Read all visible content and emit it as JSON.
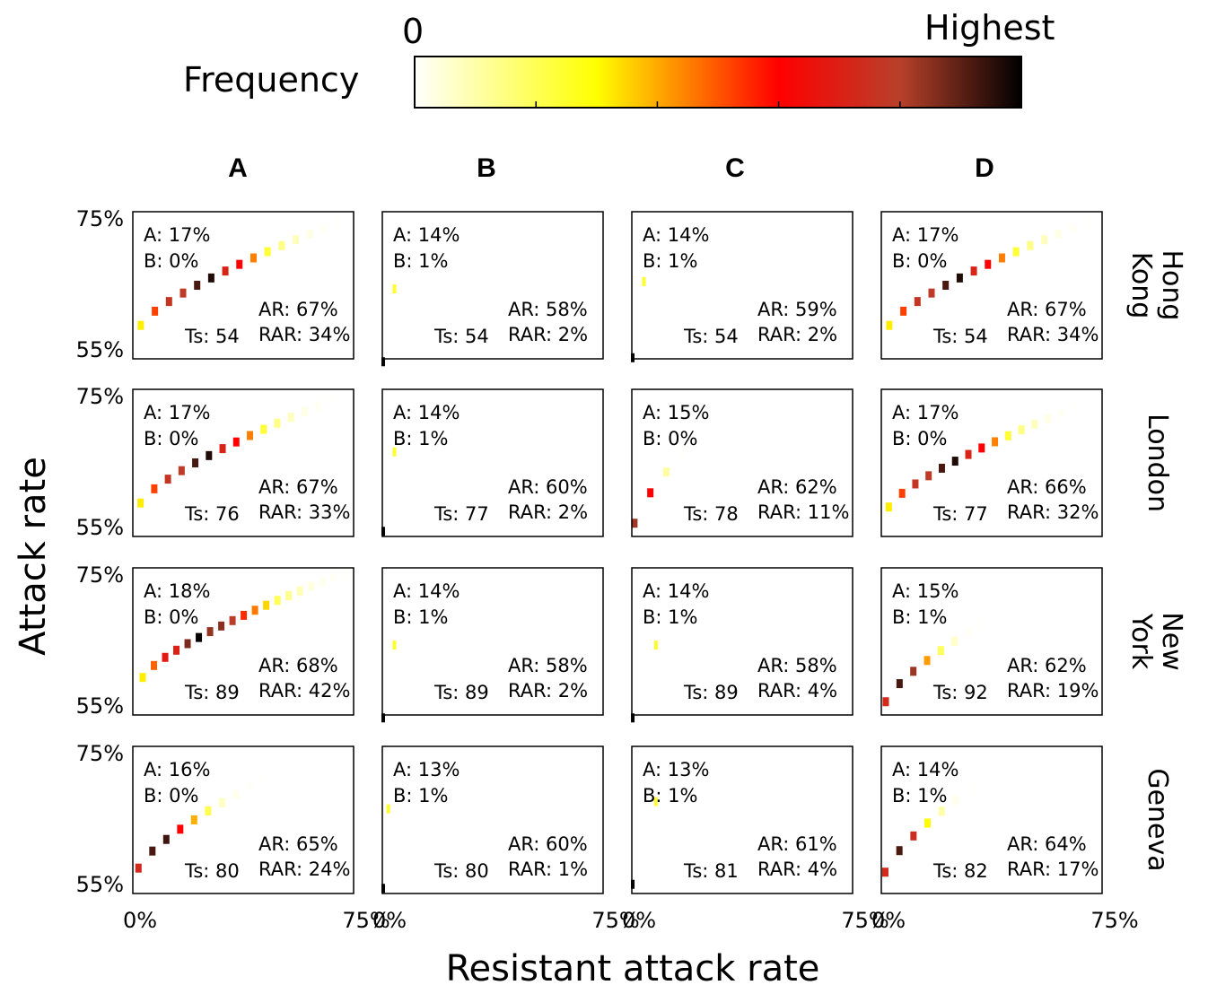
{
  "legend": {
    "title": "Frequency",
    "min_label": "0",
    "max_label": "Highest",
    "colormap": [
      "#ffffff",
      "#ffff00",
      "#ff8c00",
      "#ff0000",
      "#000000"
    ]
  },
  "columns": [
    "A",
    "B",
    "C",
    "D"
  ],
  "rows": [
    {
      "label": [
        "Hong",
        "Kong"
      ]
    },
    {
      "label": [
        "London"
      ]
    },
    {
      "label": [
        "New",
        "York"
      ]
    },
    {
      "label": [
        "Geneva"
      ]
    }
  ],
  "axes": {
    "ylabel": "Attack rate",
    "xlabel": "Resistant attack rate",
    "ytick_top": "75%",
    "ytick_bottom": "55%",
    "xtick_left": "0%",
    "xtick_right": "75%"
  },
  "chart_data": {
    "type": "heatmap",
    "x_range": [
      0,
      75
    ],
    "y_range": [
      55,
      75
    ],
    "panels": [
      {
        "row": 0,
        "col": 0,
        "A": "A: 17%",
        "B": "B: 0%",
        "AR": "AR: 67%",
        "RAR": "RAR: 34%",
        "Ts": "Ts: 54"
      },
      {
        "row": 0,
        "col": 1,
        "A": "A: 14%",
        "B": "B: 1%",
        "AR": "AR: 58%",
        "RAR": "RAR: 2%",
        "Ts": "Ts: 54"
      },
      {
        "row": 0,
        "col": 2,
        "A": "A: 14%",
        "B": "B: 1%",
        "AR": "AR: 59%",
        "RAR": "RAR: 2%",
        "Ts": "Ts: 54"
      },
      {
        "row": 0,
        "col": 3,
        "A": "A: 17%",
        "B": "B: 0%",
        "AR": "AR: 67%",
        "RAR": "RAR: 34%",
        "Ts": "Ts: 54"
      },
      {
        "row": 1,
        "col": 0,
        "A": "A: 17%",
        "B": "B: 0%",
        "AR": "AR: 67%",
        "RAR": "RAR: 33%",
        "Ts": "Ts: 76"
      },
      {
        "row": 1,
        "col": 1,
        "A": "A: 14%",
        "B": "B: 1%",
        "AR": "AR: 60%",
        "RAR": "RAR: 2%",
        "Ts": "Ts: 77"
      },
      {
        "row": 1,
        "col": 2,
        "A": "A: 15%",
        "B": "B: 0%",
        "AR": "AR: 62%",
        "RAR": "RAR: 11%",
        "Ts": "Ts: 78"
      },
      {
        "row": 1,
        "col": 3,
        "A": "A: 17%",
        "B": "B: 0%",
        "AR": "AR: 66%",
        "RAR": "RAR: 32%",
        "Ts": "Ts: 77"
      },
      {
        "row": 2,
        "col": 0,
        "A": "A: 18%",
        "B": "B: 0%",
        "AR": "AR: 68%",
        "RAR": "RAR: 42%",
        "Ts": "Ts: 89"
      },
      {
        "row": 2,
        "col": 1,
        "A": "A: 14%",
        "B": "B: 1%",
        "AR": "AR: 58%",
        "RAR": "RAR: 2%",
        "Ts": "Ts: 89"
      },
      {
        "row": 2,
        "col": 2,
        "A": "A: 14%",
        "B": "B: 1%",
        "AR": "AR: 58%",
        "RAR": "RAR: 4%",
        "Ts": "Ts: 89"
      },
      {
        "row": 2,
        "col": 3,
        "A": "A: 15%",
        "B": "B: 1%",
        "AR": "AR: 62%",
        "RAR": "RAR: 19%",
        "Ts": "Ts: 92"
      },
      {
        "row": 3,
        "col": 0,
        "A": "A: 16%",
        "B": "B: 0%",
        "AR": "AR: 65%",
        "RAR": "RAR: 24%",
        "Ts": "Ts: 80"
      },
      {
        "row": 3,
        "col": 1,
        "A": "A: 13%",
        "B": "B: 1%",
        "AR": "AR: 60%",
        "RAR": "RAR: 1%",
        "Ts": "Ts: 80"
      },
      {
        "row": 3,
        "col": 2,
        "A": "A: 13%",
        "B": "B: 1%",
        "AR": "AR: 61%",
        "RAR": "RAR: 4%",
        "Ts": "Ts: 81"
      },
      {
        "row": 3,
        "col": 3,
        "A": "A: 14%",
        "B": "B: 1%",
        "AR": "AR: 64%",
        "RAR": "RAR: 17%",
        "Ts": "Ts: 82"
      }
    ]
  }
}
